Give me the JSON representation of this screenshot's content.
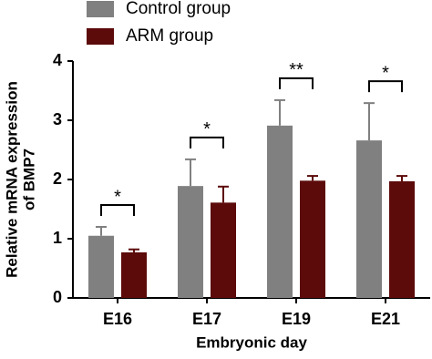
{
  "chart_data": {
    "type": "bar",
    "xlabel": "Embryonic day",
    "ylabel": [
      "Relative mRNA expression",
      "of BMP7"
    ],
    "categories": [
      "E16",
      "E17",
      "E19",
      "E21"
    ],
    "series": [
      {
        "name": "Control group",
        "color": "#808080",
        "values": [
          1.05,
          1.89,
          2.91,
          2.66
        ],
        "errors": [
          0.15,
          0.45,
          0.43,
          0.63
        ]
      },
      {
        "name": "ARM group",
        "color": "#5c0a0a",
        "values": [
          0.77,
          1.61,
          1.98,
          1.97
        ],
        "errors": [
          0.05,
          0.27,
          0.08,
          0.09
        ]
      }
    ],
    "annotations": [
      "*",
      "*",
      "**",
      "*"
    ],
    "ylim": [
      0,
      4
    ],
    "yticks": [
      0,
      1,
      2,
      3,
      4
    ]
  }
}
